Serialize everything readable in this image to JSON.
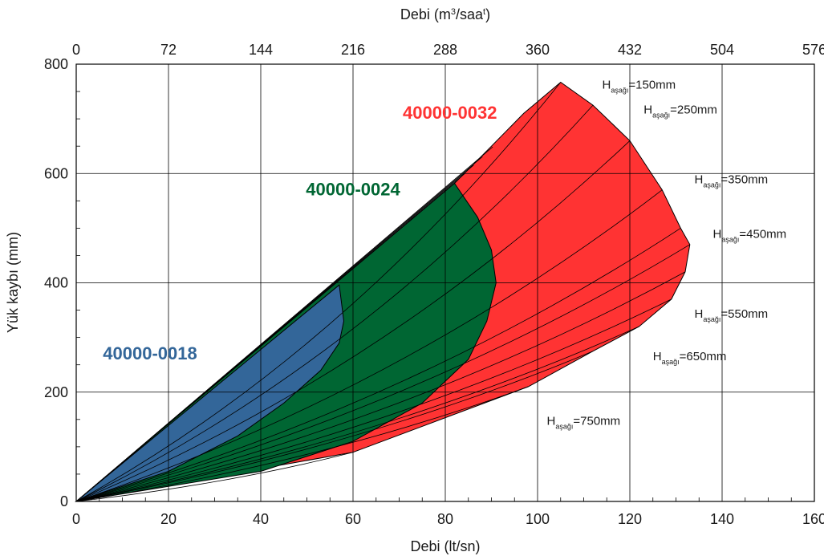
{
  "chart_data": {
    "type": "area",
    "xlabel": "Debi (lt/sn)",
    "x2label_prefix": "Debi (m",
    "x2label_sup": "3",
    "x2label_mid": "/saa",
    "x2label_sup2": "t",
    "x2label_suffix": ")",
    "ylabel": "Yük kaybı (mm)",
    "xlim": [
      0,
      160
    ],
    "ylim": [
      0,
      800
    ],
    "x2lim": [
      0,
      576
    ],
    "x_ticks": [
      0,
      20,
      40,
      60,
      80,
      100,
      120,
      140,
      160
    ],
    "x2_ticks": [
      0,
      72,
      144,
      216,
      288,
      360,
      432,
      504,
      576
    ],
    "y_ticks": [
      0,
      200,
      400,
      600,
      800
    ],
    "grid": true,
    "series": [
      {
        "name": "40000-0032",
        "color": "#ff3333",
        "label_color": "#ff3333",
        "label_pos": [
          81,
          700
        ],
        "curve_families": "upper-bound line from origin; Haşağı curves 150mm to 750mm",
        "boundary": [
          [
            0,
            0
          ],
          [
            82,
            582
          ],
          [
            90,
            650
          ],
          [
            97,
            710
          ],
          [
            105,
            767
          ],
          [
            112,
            725
          ],
          [
            120,
            660
          ],
          [
            127,
            570
          ],
          [
            131,
            500
          ],
          [
            133,
            470
          ],
          [
            132,
            420
          ],
          [
            129,
            370
          ],
          [
            122,
            320
          ],
          [
            112,
            275
          ],
          [
            98,
            210
          ],
          [
            60,
            90
          ],
          [
            0,
            0
          ]
        ]
      },
      {
        "name": "40000-0024",
        "color": "#006633",
        "label_color": "#006633",
        "label_pos": [
          60,
          560
        ],
        "boundary": [
          [
            0,
            0
          ],
          [
            82,
            582
          ],
          [
            87,
            520
          ],
          [
            90,
            460
          ],
          [
            91,
            400
          ],
          [
            89,
            330
          ],
          [
            85,
            260
          ],
          [
            75,
            180
          ],
          [
            60,
            110
          ],
          [
            40,
            55
          ],
          [
            0,
            0
          ]
        ]
      },
      {
        "name": "40000-0018",
        "color": "#336699",
        "label_color": "#336699",
        "label_pos": [
          16,
          260
        ],
        "boundary": [
          [
            0,
            0
          ],
          [
            57,
            396
          ],
          [
            58,
            330
          ],
          [
            57,
            290
          ],
          [
            53,
            240
          ],
          [
            45,
            180
          ],
          [
            35,
            120
          ],
          [
            20,
            55
          ],
          [
            0,
            0
          ]
        ]
      }
    ],
    "annotations": [
      {
        "h": "H",
        "sub": "aşağı",
        "value": "=150mm",
        "pos": [
          114,
          755
        ]
      },
      {
        "h": "H",
        "sub": "aşağı",
        "value": "=250mm",
        "pos": [
          123,
          710
        ]
      },
      {
        "h": "H",
        "sub": "aşağı",
        "value": "=350mm",
        "pos": [
          134,
          582
        ]
      },
      {
        "h": "H",
        "sub": "aşağı",
        "value": "=450mm",
        "pos": [
          138,
          482
        ]
      },
      {
        "h": "H",
        "sub": "aşağı",
        "value": "=550mm",
        "pos": [
          134,
          336
        ]
      },
      {
        "h": "H",
        "sub": "aşağı",
        "value": "=650mm",
        "pos": [
          125,
          258
        ]
      },
      {
        "h": "H",
        "sub": "aşağı",
        "value": "=750mm",
        "pos": [
          102,
          140
        ]
      }
    ]
  }
}
